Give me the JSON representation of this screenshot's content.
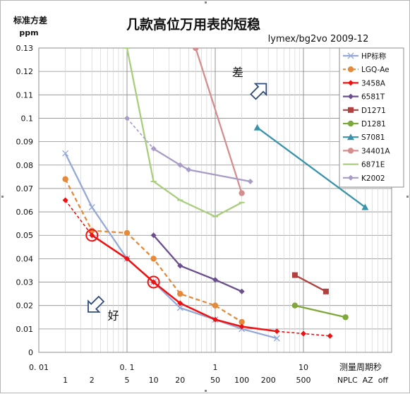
{
  "chart_data": {
    "type": "scatter",
    "title": "几款高位万用表的短稳",
    "subtitle": "lymex/bg2vo 2009-12",
    "ylabel": "标准方差",
    "yunit": "ppm",
    "xlabel": "测量周期秒",
    "xscale": "log",
    "xlim": [
      0.01,
      100
    ],
    "ylim": [
      0,
      0.13
    ],
    "y_ticks": [
      "0",
      "0.01",
      "0.02",
      "0.03",
      "0.04",
      "0.05",
      "0.06",
      "0.07",
      "0.08",
      "0.09",
      "0.1",
      "0.11",
      "0.12",
      "0.13"
    ],
    "x_ticks": [
      {
        "x": 0.01,
        "label": "0. 01"
      },
      {
        "x": 0.1,
        "label": "0. 1"
      },
      {
        "x": 1,
        "label": "1"
      },
      {
        "x": 10,
        "label": "10"
      }
    ],
    "nplc_ticks": [
      {
        "x": 0.02,
        "label": "1"
      },
      {
        "x": 0.04,
        "label": "2"
      },
      {
        "x": 0.1,
        "label": "5"
      },
      {
        "x": 0.2,
        "label": "10"
      },
      {
        "x": 0.4,
        "label": "20"
      },
      {
        "x": 1,
        "label": "50"
      },
      {
        "x": 2,
        "label": "100"
      },
      {
        "x": 4,
        "label": "200"
      },
      {
        "x": 10,
        "label": "500"
      }
    ],
    "nplc_caption": "NPLC  AZ  off",
    "grid": true,
    "legend_position": "top-right",
    "series": [
      {
        "name": "HP标称",
        "color": "#95A9D8",
        "marker": "x",
        "dash": false,
        "points": [
          [
            0.02,
            0.085
          ],
          [
            0.04,
            0.062
          ],
          [
            0.1,
            0.04
          ],
          [
            0.2,
            0.03
          ],
          [
            0.4,
            0.019
          ],
          [
            1,
            0.014
          ],
          [
            2,
            0.01
          ],
          [
            5,
            0.006
          ]
        ]
      },
      {
        "name": "LGQ-Ae",
        "color": "#E58A3A",
        "marker": "circle",
        "dash": true,
        "points": [
          [
            0.02,
            0.074
          ],
          [
            0.04,
            0.052
          ],
          [
            0.1,
            0.051
          ],
          [
            0.2,
            0.04
          ],
          [
            0.4,
            0.025
          ],
          [
            1,
            0.02
          ],
          [
            2,
            0.013
          ]
        ]
      },
      {
        "name": "3458A",
        "color": "#EE1111",
        "marker": "diamond",
        "dash": false,
        "points": [
          [
            0.04,
            0.05
          ],
          [
            0.1,
            0.04
          ],
          [
            0.2,
            0.03
          ],
          [
            0.4,
            0.021
          ],
          [
            1,
            0.014
          ],
          [
            2,
            0.011
          ],
          [
            5,
            0.009
          ]
        ],
        "dashed_points": [
          [
            0.02,
            0.065
          ],
          [
            0.04,
            0.05
          ]
        ],
        "dashed_tail": [
          [
            5,
            0.009
          ],
          [
            10,
            0.008
          ],
          [
            20,
            0.007
          ]
        ],
        "highlight": [
          [
            0.04,
            0.05
          ],
          [
            0.2,
            0.03
          ]
        ]
      },
      {
        "name": "6581T",
        "color": "#6A4E8E",
        "marker": "diamond",
        "dash": false,
        "points": [
          [
            0.2,
            0.05
          ],
          [
            0.4,
            0.037
          ],
          [
            1,
            0.031
          ],
          [
            2,
            0.026
          ]
        ]
      },
      {
        "name": "D1271",
        "color": "#B0413E",
        "marker": "square",
        "dash": false,
        "points": [
          [
            8,
            0.033
          ],
          [
            18,
            0.026
          ]
        ]
      },
      {
        "name": "D1281",
        "color": "#7FA83B",
        "marker": "circle",
        "dash": false,
        "points": [
          [
            8,
            0.02
          ],
          [
            30,
            0.015
          ]
        ]
      },
      {
        "name": "S7081",
        "color": "#3A93A8",
        "marker": "triangle",
        "dash": false,
        "points": [
          [
            3,
            0.096
          ],
          [
            50,
            0.062
          ]
        ]
      },
      {
        "name": "34401A",
        "color": "#D58E8E",
        "marker": "circle",
        "dash": false,
        "points": [
          [
            0.6,
            0.13
          ],
          [
            2,
            0.068
          ]
        ]
      },
      {
        "name": "6871E",
        "color": "#A9CE7E",
        "marker": "dash",
        "dash": false,
        "points": [
          [
            0.1,
            0.13
          ],
          [
            0.2,
            0.073
          ],
          [
            0.4,
            0.065
          ],
          [
            1,
            0.058
          ],
          [
            2,
            0.064
          ]
        ]
      },
      {
        "name": "K2002",
        "color": "#A99CC6",
        "marker": "diamond",
        "dash": false,
        "points": [
          [
            0.2,
            0.087
          ],
          [
            0.4,
            0.08
          ],
          [
            0.5,
            0.078
          ],
          [
            2.5,
            0.073
          ]
        ],
        "dashed_points": [
          [
            0.1,
            0.1
          ],
          [
            0.2,
            0.087
          ]
        ]
      }
    ],
    "annotations": [
      {
        "text": "差",
        "x": 1.8,
        "y": 0.118,
        "arrow": "up-right",
        "arrow_at": [
          3.2,
          0.112
        ]
      },
      {
        "text": "好",
        "x": 0.07,
        "y": 0.014,
        "arrow": "down-left",
        "arrow_at": [
          0.043,
          0.02
        ]
      }
    ]
  }
}
